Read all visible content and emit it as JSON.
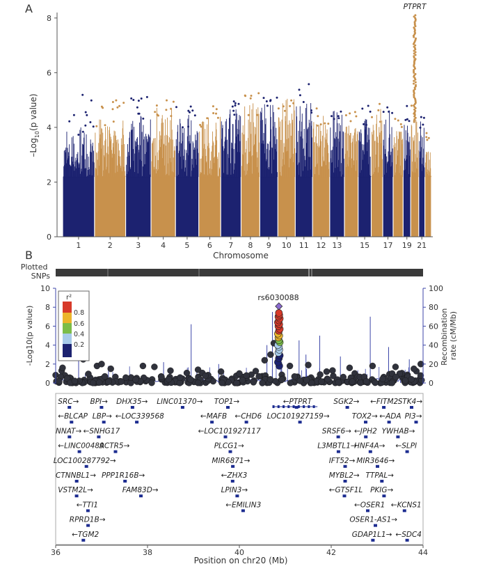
{
  "colors": {
    "chrom_odd": "#1c2270",
    "chrom_even": "#c8914c",
    "recomb": "#3c46a8",
    "gene": "#1c2c90",
    "bg_snp": "#30323c",
    "r2_scale": [
      "#1c2270",
      "#a8cbea",
      "#7cbd49",
      "#ecb52c",
      "#d73a2a"
    ],
    "axis": "#555555"
  },
  "panelA": {
    "label": "A",
    "ylabel_parts": [
      "–Log",
      "10",
      "(p value)"
    ],
    "xlabel": "Chromosome",
    "peak_gene": "PTPRT",
    "chart_data": {
      "type": "scatter",
      "title": "",
      "xlabel": "Chromosome",
      "ylabel": "–Log10(p value)",
      "ylim": [
        0,
        8.2
      ],
      "yticks": [
        0,
        2,
        4,
        6,
        8
      ],
      "chromosome_tick_labels": [
        "1",
        "2",
        "3",
        "4",
        "5",
        "6",
        "7",
        "8",
        "9",
        "10",
        "11",
        "12",
        "13",
        "15",
        "17",
        "19",
        "21"
      ],
      "chromosomes": [
        {
          "chr": 1,
          "bulk": 3.5,
          "max": 5.2
        },
        {
          "chr": 2,
          "bulk": 3.9,
          "max": 5.3
        },
        {
          "chr": 3,
          "bulk": 4.0,
          "max": 5.3
        },
        {
          "chr": 4,
          "bulk": 4.4,
          "max": 5.0
        },
        {
          "chr": 5,
          "bulk": 4.0,
          "max": 4.8
        },
        {
          "chr": 6,
          "bulk": 4.0,
          "max": 4.9
        },
        {
          "chr": 7,
          "bulk": 4.2,
          "max": 5.0
        },
        {
          "chr": 8,
          "bulk": 4.4,
          "max": 5.3
        },
        {
          "chr": 9,
          "bulk": 4.6,
          "max": 5.2
        },
        {
          "chr": 10,
          "bulk": 4.6,
          "max": 5.0
        },
        {
          "chr": 11,
          "bulk": 4.4,
          "max": 5.6
        },
        {
          "chr": 12,
          "bulk": 4.0,
          "max": 4.8
        },
        {
          "chr": 13,
          "bulk": 4.2,
          "max": 4.8
        },
        {
          "chr": 14,
          "bulk": 4.1,
          "max": 4.7
        },
        {
          "chr": 15,
          "bulk": 4.0,
          "max": 4.8
        },
        {
          "chr": 16,
          "bulk": 4.2,
          "max": 4.9
        },
        {
          "chr": 17,
          "bulk": 4.2,
          "max": 4.8
        },
        {
          "chr": 18,
          "bulk": 4.0,
          "max": 4.6
        },
        {
          "chr": 19,
          "bulk": 4.0,
          "max": 4.8
        },
        {
          "chr": 20,
          "bulk": 4.2,
          "max": 8.1
        },
        {
          "chr": 21,
          "bulk": 3.8,
          "max": 4.4
        },
        {
          "chr": 22,
          "bulk": 3.3,
          "max": 3.8
        }
      ]
    }
  },
  "panelB": {
    "label": "B",
    "plotted_snps_label": [
      "Plotted",
      "SNPs"
    ],
    "ylabel_left": "-Log10(p value)",
    "ylabel_right": [
      "Recombination",
      "rate (cM/Mb)"
    ],
    "xlabel": "Position on chr20 (Mb)",
    "lead_snp": "rs6030088",
    "legend_title": "r²",
    "legend_ticks": [
      "0.8",
      "0.6",
      "0.4",
      "0.2"
    ],
    "chart_data": {
      "type": "scatter",
      "xlim": [
        36,
        44
      ],
      "xticks": [
        36,
        38,
        40,
        42,
        44
      ],
      "ylim": [
        0,
        10
      ],
      "yticks": [
        0,
        2,
        4,
        6,
        8,
        10
      ],
      "recomb_ylim": [
        0,
        100
      ],
      "recomb_ticks": [
        0,
        20,
        40,
        60,
        80,
        100
      ],
      "lead_snp": {
        "name": "rs6030088",
        "pos": 40.86,
        "logp": 8.1
      },
      "peak_points": [
        {
          "pos": 40.86,
          "logp": 7.4,
          "r2": 0.85
        },
        {
          "pos": 40.87,
          "logp": 7.2,
          "r2": 0.9
        },
        {
          "pos": 40.85,
          "logp": 7.0,
          "r2": 0.82
        },
        {
          "pos": 40.88,
          "logp": 6.8,
          "r2": 0.88
        },
        {
          "pos": 40.86,
          "logp": 6.6,
          "r2": 0.9
        },
        {
          "pos": 40.84,
          "logp": 6.4,
          "r2": 0.85
        },
        {
          "pos": 40.87,
          "logp": 6.2,
          "r2": 0.83
        },
        {
          "pos": 40.85,
          "logp": 6.0,
          "r2": 0.81
        },
        {
          "pos": 40.88,
          "logp": 5.7,
          "r2": 0.86
        },
        {
          "pos": 40.86,
          "logp": 5.5,
          "r2": 0.84
        },
        {
          "pos": 40.84,
          "logp": 5.2,
          "r2": 0.7
        },
        {
          "pos": 40.87,
          "logp": 5.0,
          "r2": 0.66
        },
        {
          "pos": 40.85,
          "logp": 4.8,
          "r2": 0.62
        },
        {
          "pos": 40.86,
          "logp": 4.5,
          "r2": 0.5
        },
        {
          "pos": 40.88,
          "logp": 4.3,
          "r2": 0.45
        },
        {
          "pos": 40.84,
          "logp": 4.0,
          "r2": 0.38
        },
        {
          "pos": 40.86,
          "logp": 3.8,
          "r2": 0.3
        },
        {
          "pos": 40.87,
          "logp": 3.5,
          "r2": 0.25
        },
        {
          "pos": 40.85,
          "logp": 3.2,
          "r2": 0.22
        },
        {
          "pos": 40.88,
          "logp": 2.9,
          "r2": 0.18
        },
        {
          "pos": 40.86,
          "logp": 2.6,
          "r2": 0.12
        },
        {
          "pos": 40.84,
          "logp": 2.2,
          "r2": 0.1
        },
        {
          "pos": 40.87,
          "logp": 1.8,
          "r2": 0.05
        }
      ],
      "background_points": [
        {
          "pos": 36.15,
          "logp": 1.6
        },
        {
          "pos": 36.6,
          "logp": 2.5
        },
        {
          "pos": 36.9,
          "logp": 1.8
        },
        {
          "pos": 37.0,
          "logp": 2.0
        },
        {
          "pos": 37.2,
          "logp": 1.5
        },
        {
          "pos": 37.9,
          "logp": 1.8
        },
        {
          "pos": 38.15,
          "logp": 1.7
        },
        {
          "pos": 38.5,
          "logp": 1.3
        },
        {
          "pos": 39.1,
          "logp": 1.4
        },
        {
          "pos": 39.6,
          "logp": 1.2
        },
        {
          "pos": 40.0,
          "logp": 1.0
        },
        {
          "pos": 40.55,
          "logp": 2.4
        },
        {
          "pos": 40.68,
          "logp": 3.0
        },
        {
          "pos": 40.75,
          "logp": 4.2
        },
        {
          "pos": 41.1,
          "logp": 1.8
        },
        {
          "pos": 41.5,
          "logp": 1.9
        },
        {
          "pos": 41.9,
          "logp": 1.2
        },
        {
          "pos": 42.4,
          "logp": 1.6
        },
        {
          "pos": 42.9,
          "logp": 1.8
        },
        {
          "pos": 43.4,
          "logp": 1.7
        },
        {
          "pos": 43.8,
          "logp": 1.5
        },
        {
          "pos": 43.95,
          "logp": 2.0
        }
      ],
      "recomb_spikes": [
        {
          "pos": 36.1,
          "rate": 12
        },
        {
          "pos": 36.5,
          "rate": 25
        },
        {
          "pos": 37.15,
          "rate": 18
        },
        {
          "pos": 38.35,
          "rate": 22
        },
        {
          "pos": 38.95,
          "rate": 62
        },
        {
          "pos": 39.55,
          "rate": 20
        },
        {
          "pos": 40.6,
          "rate": 40
        },
        {
          "pos": 40.72,
          "rate": 75
        },
        {
          "pos": 40.92,
          "rate": 22
        },
        {
          "pos": 41.3,
          "rate": 45
        },
        {
          "pos": 41.45,
          "rate": 30
        },
        {
          "pos": 41.75,
          "rate": 50
        },
        {
          "pos": 42.2,
          "rate": 28
        },
        {
          "pos": 42.85,
          "rate": 70
        },
        {
          "pos": 43.25,
          "rate": 38
        },
        {
          "pos": 43.7,
          "rate": 25
        }
      ],
      "genes": [
        {
          "name": "SRC",
          "x": 36.05,
          "row": 0,
          "dir": "r"
        },
        {
          "name": "BPI",
          "x": 36.75,
          "row": 0,
          "dir": "r"
        },
        {
          "name": "DHX35",
          "x": 37.32,
          "row": 0,
          "dir": "r"
        },
        {
          "name": "LINC01370",
          "x": 38.2,
          "row": 0,
          "dir": "r"
        },
        {
          "name": "TOP1",
          "x": 39.45,
          "row": 0,
          "dir": "r"
        },
        {
          "name": "PTPRT",
          "x": 40.95,
          "row": 0,
          "dir": "l"
        },
        {
          "name": "SGK2",
          "x": 42.05,
          "row": 0,
          "dir": "r"
        },
        {
          "name": "FITM2",
          "x": 42.85,
          "row": 0,
          "dir": "l"
        },
        {
          "name": "STK4",
          "x": 43.45,
          "row": 0,
          "dir": "r"
        },
        {
          "name": "BLCAP",
          "x": 36.05,
          "row": 1,
          "dir": "l"
        },
        {
          "name": "LBP",
          "x": 36.8,
          "row": 1,
          "dir": "r"
        },
        {
          "name": "LOC339568",
          "x": 37.3,
          "row": 1,
          "dir": "l"
        },
        {
          "name": "MAFB",
          "x": 39.15,
          "row": 1,
          "dir": "l"
        },
        {
          "name": "CHD6",
          "x": 39.9,
          "row": 1,
          "dir": "l"
        },
        {
          "name": "LOC101927159",
          "x": 40.6,
          "row": 1,
          "dir": "r"
        },
        {
          "name": "TOX2",
          "x": 42.45,
          "row": 1,
          "dir": "r"
        },
        {
          "name": "ADA",
          "x": 43.05,
          "row": 1,
          "dir": "l"
        },
        {
          "name": "PI3",
          "x": 43.6,
          "row": 1,
          "dir": "r"
        },
        {
          "name": "NNAT",
          "x": 36.0,
          "row": 2,
          "dir": "r"
        },
        {
          "name": "SNHG17",
          "x": 36.6,
          "row": 2,
          "dir": "l"
        },
        {
          "name": "LOC101927117",
          "x": 39.1,
          "row": 2,
          "dir": "l"
        },
        {
          "name": "SRSF6",
          "x": 41.8,
          "row": 2,
          "dir": "r"
        },
        {
          "name": "JPH2",
          "x": 42.5,
          "row": 2,
          "dir": "l"
        },
        {
          "name": "YWHAB",
          "x": 43.1,
          "row": 2,
          "dir": "r"
        },
        {
          "name": "LINC00489",
          "x": 36.05,
          "row": 3,
          "dir": "l"
        },
        {
          "name": "ACTR5",
          "x": 36.95,
          "row": 3,
          "dir": "r"
        },
        {
          "name": "PLCG1",
          "x": 39.45,
          "row": 3,
          "dir": "r"
        },
        {
          "name": "L3MBTL1",
          "x": 41.7,
          "row": 3,
          "dir": "r"
        },
        {
          "name": "HNF4A",
          "x": 42.5,
          "row": 3,
          "dir": "r"
        },
        {
          "name": "SLPI",
          "x": 43.4,
          "row": 3,
          "dir": "l"
        },
        {
          "name": "LOC100287792",
          "x": 35.95,
          "row": 4,
          "dir": "r"
        },
        {
          "name": "MIR6871",
          "x": 39.4,
          "row": 4,
          "dir": "r"
        },
        {
          "name": "IFT52",
          "x": 41.95,
          "row": 4,
          "dir": "r"
        },
        {
          "name": "MIR3646",
          "x": 42.55,
          "row": 4,
          "dir": "r"
        },
        {
          "name": "CTNNBL1",
          "x": 36.0,
          "row": 5,
          "dir": "r"
        },
        {
          "name": "PPP1R16B",
          "x": 37.0,
          "row": 5,
          "dir": "r"
        },
        {
          "name": "ZHX3",
          "x": 39.6,
          "row": 5,
          "dir": "l"
        },
        {
          "name": "MYBL2",
          "x": 41.95,
          "row": 5,
          "dir": "r"
        },
        {
          "name": "TTPAL",
          "x": 42.75,
          "row": 5,
          "dir": "r"
        },
        {
          "name": "VSTM2L",
          "x": 36.05,
          "row": 6,
          "dir": "r"
        },
        {
          "name": "FAM83D",
          "x": 37.45,
          "row": 6,
          "dir": "r"
        },
        {
          "name": "LPIN3",
          "x": 39.6,
          "row": 6,
          "dir": "r"
        },
        {
          "name": "GTSF1L",
          "x": 41.95,
          "row": 6,
          "dir": "l"
        },
        {
          "name": "PKIG",
          "x": 42.85,
          "row": 6,
          "dir": "r"
        },
        {
          "name": "TTI1",
          "x": 36.45,
          "row": 7,
          "dir": "l"
        },
        {
          "name": "EMILIN3",
          "x": 39.7,
          "row": 7,
          "dir": "l"
        },
        {
          "name": "OSER1",
          "x": 42.5,
          "row": 7,
          "dir": "l"
        },
        {
          "name": "KCNS1",
          "x": 43.3,
          "row": 7,
          "dir": "l"
        },
        {
          "name": "RPRD1B",
          "x": 36.3,
          "row": 8,
          "dir": "r"
        },
        {
          "name": "OSER1-AS1",
          "x": 42.4,
          "row": 8,
          "dir": "r"
        },
        {
          "name": "TGM2",
          "x": 36.35,
          "row": 9,
          "dir": "l"
        },
        {
          "name": "GDAP1L1",
          "x": 42.45,
          "row": 9,
          "dir": "r"
        },
        {
          "name": "SDC4",
          "x": 43.4,
          "row": 9,
          "dir": "l"
        }
      ]
    }
  }
}
